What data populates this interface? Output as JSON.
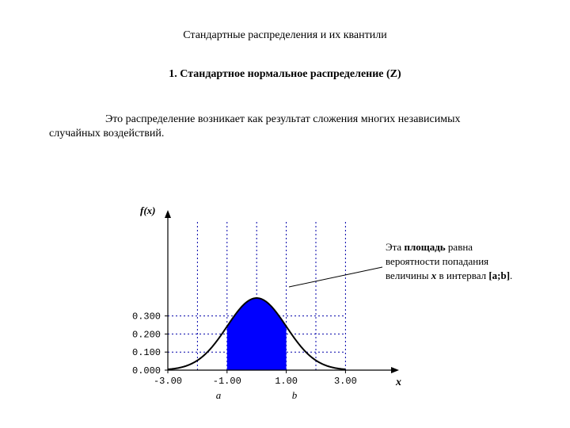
{
  "document": {
    "title": "Стандартные распределения и их квантили",
    "section_heading": "1. Стандартное нормальное распределение (Z)",
    "paragraph": {
      "line1": "Это распределение возникает как результат сложения многих независимых",
      "line2": "случайных воздействий."
    }
  },
  "chart_data": {
    "type": "area",
    "function": "standard normal density",
    "ylabel": "f(x)",
    "xlabel": "x",
    "xlim": [
      -3.5,
      3.5
    ],
    "ylim": [
      0,
      0.4
    ],
    "x_ticks": [
      "-3.00",
      "-1.00",
      "1.00",
      "3.00"
    ],
    "x_tick_values": [
      -3,
      -1,
      1,
      3
    ],
    "y_ticks": [
      "0.000",
      "0.100",
      "0.200",
      "0.300"
    ],
    "y_tick_values": [
      0,
      0.1,
      0.2,
      0.3
    ],
    "shaded_interval": {
      "a": -1,
      "b": 1,
      "label_a": "a",
      "label_b": "b"
    },
    "grid": true,
    "grid_x": [
      -3,
      -2,
      -1,
      0,
      1,
      2,
      3
    ],
    "grid_y": [
      0.1,
      0.2,
      0.3
    ],
    "fill_color": "#0000ff",
    "curve_color": "#000000",
    "annotation": {
      "line1_prefix": "Эта ",
      "line1_bold": "площадь",
      "line1_suffix": " равна",
      "line2": "вероятности попадания",
      "line3_prefix": "величины ",
      "line3_var": "x",
      "line3_mid": " в интервал ",
      "line3_interval": "[a;b]",
      "line3_end": "."
    }
  }
}
